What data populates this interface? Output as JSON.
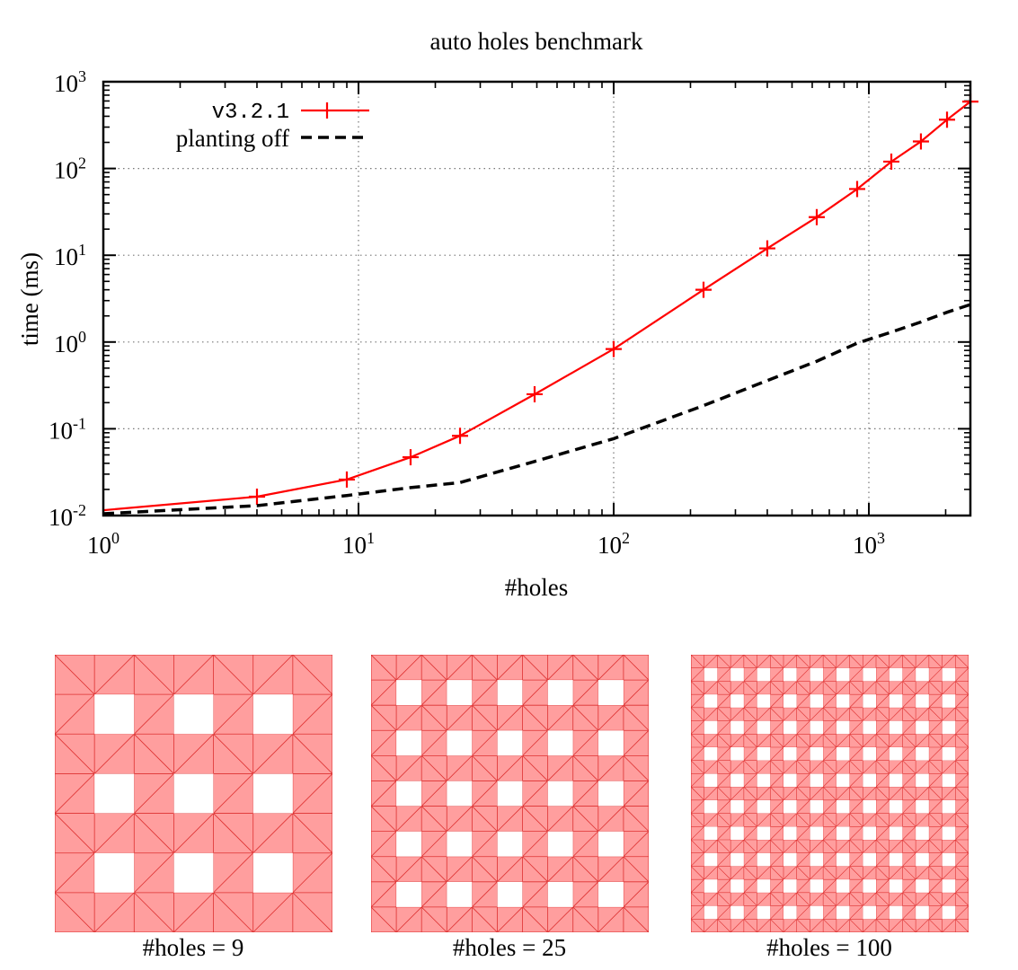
{
  "chart_data": {
    "type": "line",
    "title": "auto holes benchmark",
    "xlabel": "#holes",
    "ylabel": "time (ms)",
    "xscale": "log",
    "yscale": "log",
    "xlim": [
      1,
      2500
    ],
    "ylim": [
      0.01,
      1000
    ],
    "grid": true,
    "legend_position": "top-left",
    "x_ticks": [
      {
        "value": 1,
        "base": "10",
        "exp": "0"
      },
      {
        "value": 10,
        "base": "10",
        "exp": "1"
      },
      {
        "value": 100,
        "base": "10",
        "exp": "2"
      },
      {
        "value": 1000,
        "base": "10",
        "exp": "3"
      }
    ],
    "y_ticks": [
      {
        "value": 0.01,
        "base": "10",
        "exp": "-2"
      },
      {
        "value": 0.1,
        "base": "10",
        "exp": "-1"
      },
      {
        "value": 1,
        "base": "10",
        "exp": "0"
      },
      {
        "value": 10,
        "base": "10",
        "exp": "1"
      },
      {
        "value": 100,
        "base": "10",
        "exp": "2"
      },
      {
        "value": 1000,
        "base": "10",
        "exp": "3"
      }
    ],
    "series": [
      {
        "name": "v3.2.1",
        "color": "#ff0000",
        "style": "solid",
        "marker": "plus",
        "x": [
          1,
          4,
          9,
          16,
          25,
          49,
          100,
          225,
          400,
          625,
          900,
          1225,
          1600,
          2025,
          2500
        ],
        "y": [
          0.0115,
          0.0165,
          0.026,
          0.047,
          0.083,
          0.25,
          0.83,
          4.0,
          12.0,
          27.5,
          58.0,
          120.0,
          205.0,
          365.0,
          590.0
        ]
      },
      {
        "name": "planting off",
        "color": "#000000",
        "style": "dashed",
        "marker": "none",
        "x": [
          1,
          4,
          9,
          16,
          25,
          49,
          100,
          225,
          400,
          625,
          900,
          1225,
          1600,
          2025,
          2500
        ],
        "y": [
          0.0105,
          0.013,
          0.017,
          0.021,
          0.024,
          0.042,
          0.077,
          0.185,
          0.36,
          0.6,
          0.97,
          1.3,
          1.7,
          2.2,
          2.7
        ]
      }
    ]
  },
  "meshes": [
    {
      "caption": "#holes = 9",
      "n": 3,
      "fill": "#ff9e9e",
      "line": "#dd3030"
    },
    {
      "caption": "#holes = 25",
      "n": 5,
      "fill": "#ff9e9e",
      "line": "#dd3030"
    },
    {
      "caption": "#holes = 100",
      "n": 10,
      "fill": "#ff9e9e",
      "line": "#dd3030"
    }
  ]
}
